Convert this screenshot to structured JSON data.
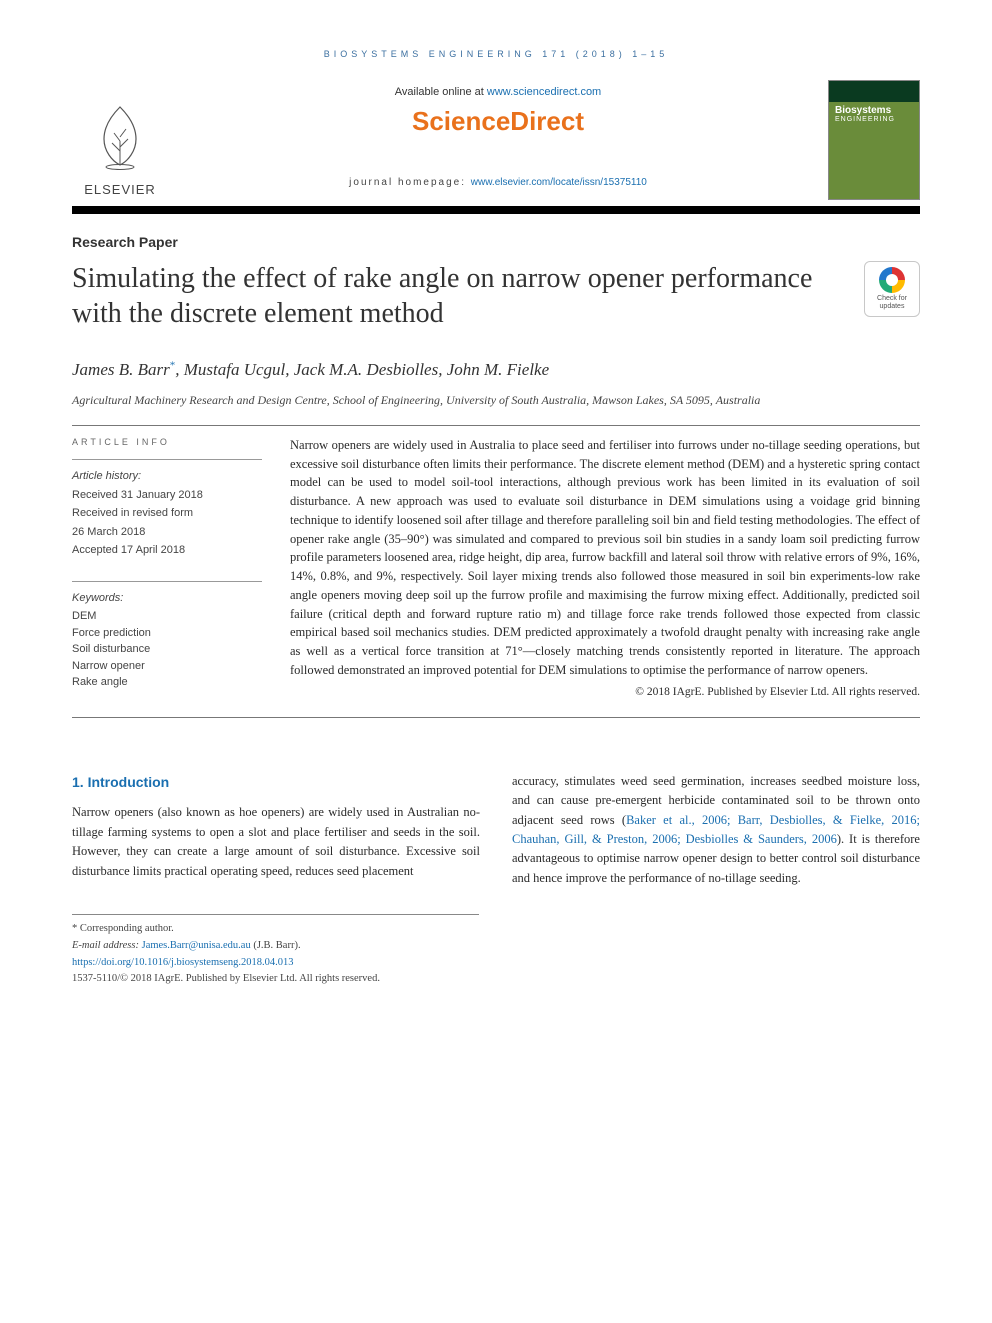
{
  "running_head": "BIOSYSTEMS ENGINEERING 171 (2018) 1–15",
  "banner": {
    "elsevier_word": "ELSEVIER",
    "available_prefix": "Available online at ",
    "available_url": "www.sciencedirect.com",
    "sd_logo": "ScienceDirect",
    "homepage_prefix": "journal homepage: ",
    "homepage_url": "www.elsevier.com/locate/issn/15375110",
    "cover_title": "Biosystems",
    "cover_sub": "ENGINEERING"
  },
  "doc_type": "Research Paper",
  "title": "Simulating the effect of rake angle on narrow opener performance with the discrete element method",
  "crossmark": {
    "line1": "Check for",
    "line2": "updates"
  },
  "authors_html": "James B. Barr<sup>*</sup>, Mustafa Ucgul, Jack M.A. Desbiolles, John M. Fielke",
  "affiliation": "Agricultural Machinery Research and Design Centre, School of Engineering, University of South Australia, Mawson Lakes, SA 5095, Australia",
  "article_info": {
    "head": "ARTICLE INFO",
    "history_label": "Article history:",
    "received": "Received 31 January 2018",
    "revised1": "Received in revised form",
    "revised2": "26 March 2018",
    "accepted": "Accepted 17 April 2018",
    "keywords_label": "Keywords:",
    "keywords": [
      "DEM",
      "Force prediction",
      "Soil disturbance",
      "Narrow opener",
      "Rake angle"
    ]
  },
  "abstract": "Narrow openers are widely used in Australia to place seed and fertiliser into furrows under no-tillage seeding operations, but excessive soil disturbance often limits their performance. The discrete element method (DEM) and a hysteretic spring contact model can be used to model soil-tool interactions, although previous work has been limited in its evaluation of soil disturbance. A new approach was used to evaluate soil disturbance in DEM simulations using a voidage grid binning technique to identify loosened soil after tillage and therefore paralleling soil bin and field testing methodologies. The effect of opener rake angle (35–90°) was simulated and compared to previous soil bin studies in a sandy loam soil predicting furrow profile parameters loosened area, ridge height, dip area, furrow backfill and lateral soil throw with relative errors of 9%, 16%, 14%, 0.8%, and 9%, respectively. Soil layer mixing trends also followed those measured in soil bin experiments-low rake angle openers moving deep soil up the furrow profile and maximising the furrow mixing effect. Additionally, predicted soil failure (critical depth and forward rupture ratio m) and tillage force rake trends followed those expected from classic empirical based soil mechanics studies. DEM predicted approximately a twofold draught penalty with increasing rake angle as well as a vertical force transition at 71°—closely matching trends consistently reported in literature. The approach followed demonstrated an improved potential for DEM simulations to optimise the performance of narrow openers.",
  "abstract_copyright": "© 2018 IAgrE. Published by Elsevier Ltd. All rights reserved.",
  "section1": {
    "head": "1.    Introduction",
    "para1": "Narrow openers (also known as hoe openers) are widely used in Australian no-tillage farming systems to open a slot and place fertiliser and seeds in the soil. However, they can create a large amount of soil disturbance. Excessive soil disturbance limits practical operating speed, reduces seed placement",
    "para2_pre": "accuracy, stimulates weed seed germination, increases seedbed moisture loss, and can cause pre-emergent herbicide contaminated soil to be thrown onto adjacent seed rows (",
    "para2_link": "Baker et al., 2006; Barr, Desbiolles, & Fielke, 2016; Chauhan, Gill, & Preston, 2006; Desbiolles & Saunders, 2006",
    "para2_post": "). It is therefore advantageous to optimise narrow opener design to better control soil disturbance and hence improve the performance of no-tillage seeding."
  },
  "footnotes": {
    "corr": "* Corresponding author.",
    "email_label": "E-mail address: ",
    "email": "James.Barr@unisa.edu.au",
    "email_suffix": " (J.B. Barr).",
    "doi": "https://doi.org/10.1016/j.biosystemseng.2018.04.013",
    "issn_line": "1537-5110/© 2018 IAgrE. Published by Elsevier Ltd. All rights reserved."
  },
  "colors": {
    "link": "#1a6fb0",
    "orange": "#e9711c",
    "rule": "#777777"
  }
}
